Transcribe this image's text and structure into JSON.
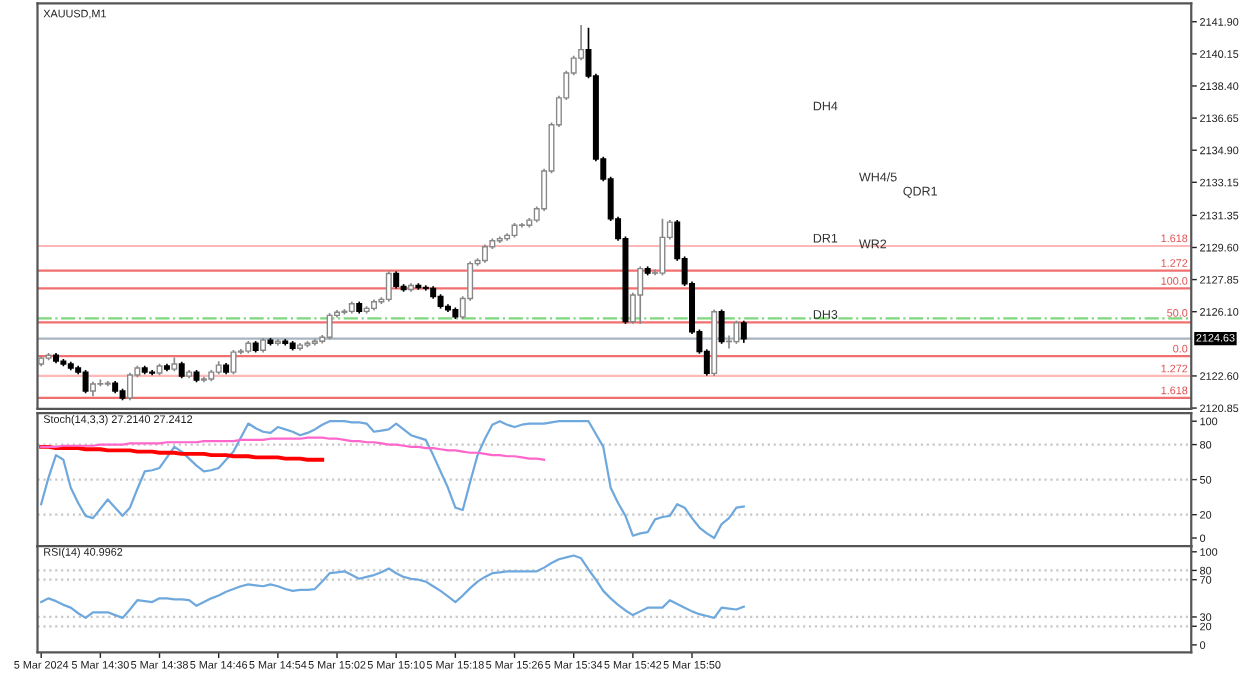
{
  "chart_data": [
    {
      "type": "candlestick",
      "title": "XAUUSD,M1",
      "categories": [
        null,
        null,
        null,
        null,
        null,
        null,
        null,
        null,
        null,
        null,
        null,
        null,
        null,
        null,
        null,
        null,
        null,
        null,
        null,
        null,
        null,
        null,
        null,
        null,
        null,
        null,
        null,
        null,
        null,
        null,
        null,
        null,
        null,
        null,
        null,
        null,
        null,
        null,
        null,
        null,
        null,
        null,
        null,
        null,
        null,
        null,
        null,
        null,
        null,
        null,
        null,
        null,
        null,
        null,
        null,
        null,
        null,
        null,
        null,
        null,
        null,
        null,
        null,
        null,
        null,
        null,
        null,
        null,
        null,
        null,
        null,
        null,
        null,
        null,
        null,
        null,
        null,
        null,
        null,
        null,
        null,
        null,
        null,
        null,
        null,
        null,
        null,
        null,
        null,
        null,
        null,
        null,
        null,
        null,
        null,
        null,
        null,
        null,
        null,
        null,
        null,
        null,
        null,
        null,
        null,
        null,
        null,
        null,
        null,
        null,
        null,
        null,
        null,
        null,
        null,
        null,
        null,
        null,
        null,
        null,
        null,
        null,
        null,
        null,
        null,
        null,
        null,
        null,
        null,
        null,
        null,
        null,
        null,
        null,
        null,
        null,
        null,
        null,
        null,
        null,
        null,
        null,
        null,
        null,
        null,
        null,
        null,
        null,
        null,
        null,
        null,
        null,
        null,
        null,
        null,
        null
      ],
      "ohlc": [
        [
          2123.25,
          2123.68,
          2123.13,
          2123.57
        ],
        [
          2123.57,
          2123.85,
          2123.45,
          2123.73
        ],
        [
          2123.73,
          2123.85,
          2123.29,
          2123.41
        ],
        [
          2123.41,
          2123.53,
          2123.13,
          2123.25
        ],
        [
          2123.25,
          2123.37,
          2122.91,
          2123.03
        ],
        [
          2123.03,
          2123.15,
          2122.69,
          2122.81
        ],
        [
          2122.81,
          2122.93,
          2121.66,
          2121.78
        ],
        [
          2121.78,
          2122.28,
          2121.5,
          2122.16
        ],
        [
          2122.16,
          2122.4,
          2122.04,
          2122.16
        ],
        [
          2122.16,
          2122.33,
          2122.04,
          2122.21
        ],
        [
          2122.21,
          2122.33,
          2121.66,
          2121.78
        ],
        [
          2121.78,
          2121.9,
          2121.28,
          2121.4
        ],
        [
          2121.4,
          2122.77,
          2121.28,
          2122.65
        ],
        [
          2122.65,
          2123.15,
          2122.53,
          2123.03
        ],
        [
          2123.03,
          2123.15,
          2122.69,
          2122.81
        ],
        [
          2122.81,
          2122.93,
          2122.64,
          2122.76
        ],
        [
          2122.76,
          2123.26,
          2122.64,
          2123.14
        ],
        [
          2123.14,
          2123.26,
          2122.85,
          2122.97
        ],
        [
          2122.97,
          2123.6,
          2122.85,
          2123.25
        ],
        [
          2123.25,
          2123.37,
          2122.47,
          2122.59
        ],
        [
          2122.59,
          2122.93,
          2122.47,
          2122.81
        ],
        [
          2122.81,
          2122.93,
          2122.26,
          2122.38
        ],
        [
          2122.38,
          2122.55,
          2122.26,
          2122.43
        ],
        [
          2122.43,
          2122.93,
          2122.31,
          2122.81
        ],
        [
          2122.81,
          2123.4,
          2122.69,
          2123.19
        ],
        [
          2123.19,
          2123.31,
          2122.69,
          2122.81
        ],
        [
          2122.81,
          2124.02,
          2122.69,
          2123.9
        ],
        [
          2123.9,
          2124.07,
          2123.78,
          2123.95
        ],
        [
          2123.95,
          2124.5,
          2123.83,
          2124.38
        ],
        [
          2124.38,
          2124.5,
          2123.88,
          2124.0
        ],
        [
          2124.0,
          2124.67,
          2123.88,
          2124.55
        ],
        [
          2124.55,
          2124.67,
          2124.26,
          2124.38
        ],
        [
          2124.38,
          2124.61,
          2124.26,
          2124.49
        ],
        [
          2124.49,
          2124.61,
          2124.26,
          2124.38
        ],
        [
          2124.38,
          2124.5,
          2123.99,
          2124.11
        ],
        [
          2124.11,
          2124.4,
          2123.99,
          2124.28
        ],
        [
          2124.28,
          2124.5,
          2124.16,
          2124.38
        ],
        [
          2124.38,
          2124.61,
          2124.26,
          2124.49
        ],
        [
          2124.49,
          2124.83,
          2124.37,
          2124.71
        ],
        [
          2124.71,
          2126.02,
          2124.59,
          2125.9
        ],
        [
          2125.9,
          2126.19,
          2125.78,
          2126.07
        ],
        [
          2126.07,
          2126.24,
          2125.95,
          2126.12
        ],
        [
          2126.12,
          2126.65,
          2126.0,
          2126.53
        ],
        [
          2126.53,
          2126.65,
          2126.0,
          2126.12
        ],
        [
          2126.12,
          2126.4,
          2126.0,
          2126.28
        ],
        [
          2126.28,
          2126.76,
          2126.16,
          2126.64
        ],
        [
          2126.64,
          2126.89,
          2126.52,
          2126.77
        ],
        [
          2126.77,
          2128.3,
          2126.65,
          2128.18
        ],
        [
          2128.18,
          2128.3,
          2127.36,
          2127.48
        ],
        [
          2127.48,
          2127.6,
          2127.19,
          2127.31
        ],
        [
          2127.31,
          2127.65,
          2127.19,
          2127.53
        ],
        [
          2127.53,
          2127.65,
          2127.3,
          2127.42
        ],
        [
          2127.42,
          2127.54,
          2127.25,
          2127.37
        ],
        [
          2127.37,
          2127.49,
          2126.81,
          2126.93
        ],
        [
          2126.93,
          2127.05,
          2126.27,
          2126.39
        ],
        [
          2126.39,
          2126.51,
          2126.09,
          2126.21
        ],
        [
          2126.21,
          2126.33,
          2125.7,
          2125.82
        ],
        [
          2125.82,
          2126.94,
          2125.7,
          2126.82
        ],
        [
          2126.82,
          2128.84,
          2126.7,
          2128.72
        ],
        [
          2128.72,
          2129.01,
          2128.6,
          2128.89
        ],
        [
          2128.89,
          2129.76,
          2128.77,
          2129.64
        ],
        [
          2129.64,
          2130.09,
          2129.52,
          2129.97
        ],
        [
          2129.97,
          2130.2,
          2129.85,
          2130.08
        ],
        [
          2130.08,
          2130.38,
          2129.96,
          2130.26
        ],
        [
          2130.26,
          2130.93,
          2130.14,
          2130.81
        ],
        [
          2130.81,
          2130.93,
          2130.69,
          2130.81
        ],
        [
          2130.81,
          2131.21,
          2130.69,
          2131.09
        ],
        [
          2131.09,
          2131.83,
          2130.97,
          2131.71
        ],
        [
          2131.71,
          2133.89,
          2131.59,
          2133.77
        ],
        [
          2133.77,
          2136.41,
          2133.65,
          2136.29
        ],
        [
          2136.29,
          2137.87,
          2136.17,
          2137.75
        ],
        [
          2137.75,
          2139.23,
          2137.63,
          2139.11
        ],
        [
          2139.11,
          2140.04,
          2138.99,
          2139.92
        ],
        [
          2139.92,
          2141.72,
          2139.8,
          2140.38
        ],
        [
          2140.38,
          2141.57,
          2138.82,
          2138.94
        ],
        [
          2138.94,
          2139.06,
          2134.3,
          2134.42
        ],
        [
          2134.42,
          2134.54,
          2133.21,
          2133.33
        ],
        [
          2133.33,
          2133.45,
          2131.04,
          2131.16
        ],
        [
          2131.16,
          2131.28,
          2129.96,
          2130.08
        ],
        [
          2130.08,
          2130.2,
          2125.44,
          2125.56
        ],
        [
          2125.56,
          2127.13,
          2125.44,
          2127.01
        ],
        [
          2127.01,
          2128.57,
          2125.44,
          2128.45
        ],
        [
          2128.45,
          2128.57,
          2128.08,
          2128.2
        ],
        [
          2128.2,
          2128.4,
          2128.08,
          2128.2
        ],
        [
          2128.2,
          2131.16,
          2128.08,
          2130.15
        ],
        [
          2130.15,
          2131.1,
          2130.03,
          2130.98
        ],
        [
          2130.98,
          2131.1,
          2128.87,
          2128.99
        ],
        [
          2128.99,
          2129.11,
          2127.5,
          2127.62
        ],
        [
          2127.62,
          2127.74,
          2124.89,
          2125.01
        ],
        [
          2125.01,
          2125.13,
          2123.81,
          2123.93
        ],
        [
          2123.93,
          2124.05,
          2122.62,
          2122.74
        ],
        [
          2122.74,
          2126.22,
          2122.59,
          2126.1
        ],
        [
          2126.1,
          2126.22,
          2124.35,
          2124.47
        ],
        [
          2124.47,
          2124.8,
          2124.1,
          2124.47
        ],
        [
          2124.47,
          2125.61,
          2124.35,
          2125.49
        ],
        [
          2125.49,
          2125.61,
          2124.4,
          2124.63
        ],
        null,
        null,
        null,
        null,
        null,
        null,
        null,
        null,
        null,
        null,
        null,
        null,
        null,
        null,
        null,
        null,
        null,
        null,
        null,
        null,
        null,
        null,
        null,
        null,
        null,
        null,
        null,
        null,
        null,
        null,
        null,
        null,
        null,
        null,
        null,
        null,
        null,
        null,
        null,
        null,
        null,
        null,
        null,
        null,
        null,
        null,
        null,
        null,
        null,
        null,
        null,
        null,
        null,
        null,
        null,
        null,
        null,
        null,
        null,
        null
      ],
      "ylim": [
        2120.8,
        2142.9
      ],
      "yticks": [
        {
          "value": 2120.85,
          "label": "2120.85"
        },
        {
          "value": 2122.6,
          "label": "2122.60"
        },
        {
          "value": 2126.1,
          "label": "2126.10"
        },
        {
          "value": 2127.85,
          "label": "2127.85"
        },
        {
          "value": 2129.6,
          "label": "2129.60"
        },
        {
          "value": 2131.35,
          "label": "2131.35"
        },
        {
          "value": 2133.15,
          "label": "2133.15"
        },
        {
          "value": 2134.9,
          "label": "2134.90"
        },
        {
          "value": 2136.65,
          "label": "2136.65"
        },
        {
          "value": 2138.4,
          "label": "2138.40"
        },
        {
          "value": 2140.15,
          "label": "2140.15"
        },
        {
          "value": 2141.9,
          "label": "2141.90"
        }
      ],
      "ref_lines": [
        {
          "axis": "y",
          "value": 2129.68,
          "color": "#ffb8b8",
          "line_style": "solid"
        },
        {
          "axis": "y",
          "value": 2128.34,
          "color": "#f07070",
          "line_style": "solid"
        },
        {
          "axis": "y",
          "value": 2127.37,
          "color": "#f07070",
          "line_style": "solid"
        },
        {
          "axis": "y",
          "value": 2125.74,
          "color": "#7fd87f",
          "line_style": "dashdot"
        },
        {
          "axis": "y",
          "value": 2125.52,
          "color": "#f07070",
          "line_style": "solid"
        },
        {
          "axis": "y",
          "value": 2124.63,
          "label": "2124.63",
          "color": "#a8b4c0",
          "line_style": "solid"
        },
        {
          "axis": "y",
          "value": 2123.68,
          "color": "#f07070",
          "line_style": "solid"
        },
        {
          "axis": "y",
          "value": 2122.6,
          "color": "#ffb8b8",
          "line_style": "solid"
        },
        {
          "axis": "y",
          "value": 2121.4,
          "color": "#f07070",
          "line_style": "solid"
        }
      ],
      "annotations": [
        "DH4",
        "WH4/5",
        "QDR1",
        "DR1",
        "WR2",
        "DH3",
        "1.618",
        "1.272",
        "100.0",
        "50.0",
        "0.0",
        "1.272",
        "1.618"
      ],
      "tick_labels": "y"
    },
    {
      "type": "line",
      "title": "Stoch(14,3,3) 27.2140 27.2412",
      "categories": [
        null,
        null,
        null,
        null,
        null,
        null,
        null,
        null,
        null,
        null,
        null,
        null,
        null,
        null,
        null,
        null,
        null,
        null,
        null,
        null,
        null,
        null,
        null,
        null,
        null,
        null,
        null,
        null,
        null,
        null,
        null,
        null,
        null,
        null,
        null,
        null,
        null,
        null,
        null,
        null,
        null,
        null,
        null,
        null,
        null,
        null,
        null,
        null,
        null,
        null,
        null,
        null,
        null,
        null,
        null,
        null,
        null,
        null,
        null,
        null,
        null,
        null,
        null,
        null,
        null,
        null,
        null,
        null,
        null,
        null,
        null,
        null,
        null,
        null,
        null,
        null,
        null,
        null,
        null,
        null,
        null,
        null,
        null,
        null,
        null,
        null,
        null,
        null,
        null,
        null,
        null,
        null,
        null,
        null,
        null,
        null,
        null,
        null,
        null,
        null,
        null,
        null,
        null,
        null,
        null,
        null,
        null,
        null,
        null,
        null,
        null,
        null,
        null,
        null,
        null,
        null,
        null,
        null,
        null,
        null,
        null,
        null,
        null,
        null,
        null,
        null,
        null,
        null,
        null,
        null,
        null,
        null,
        null,
        null,
        null,
        null,
        null,
        null,
        null,
        null,
        null,
        null,
        null,
        null,
        null,
        null,
        null,
        null,
        null,
        null,
        null,
        null,
        null,
        null,
        null,
        null
      ],
      "series": [
        {
          "color": "#6fa8dc",
          "values": [
            29,
            52,
            71,
            67,
            43,
            30,
            19,
            17,
            25,
            33,
            26,
            19,
            26,
            42,
            57,
            58,
            60,
            69,
            78,
            74,
            68,
            62,
            57,
            58,
            60,
            67,
            74,
            86,
            98,
            94,
            91,
            90,
            95,
            93,
            91,
            88,
            90,
            93,
            97,
            100,
            100,
            100,
            99,
            99,
            98,
            91,
            92,
            93,
            98,
            93,
            88,
            86,
            84,
            71,
            57,
            43,
            26,
            24,
            48,
            71,
            85,
            97,
            100,
            97,
            95,
            97,
            98,
            98,
            98,
            99,
            100,
            100,
            100,
            100,
            100,
            89,
            78,
            43,
            30,
            19,
            2,
            4,
            5,
            16,
            18,
            19,
            29,
            26,
            17,
            9,
            4,
            0,
            12,
            17,
            26,
            27,
            null,
            null,
            null,
            null,
            null,
            null,
            null,
            null,
            null,
            null,
            null,
            null,
            null,
            null,
            null,
            null,
            null,
            null,
            null,
            null,
            null,
            null,
            null,
            null,
            null,
            null,
            null,
            null,
            null,
            null,
            null,
            null,
            null,
            null,
            null,
            null,
            null,
            null,
            null,
            null,
            null,
            null,
            null,
            null,
            null,
            null,
            null,
            null,
            null,
            null,
            null,
            null,
            null,
            null,
            null,
            null,
            null,
            null,
            null,
            null
          ]
        },
        {
          "color": "#ff0000",
          "values": [
            78,
            78,
            77,
            77,
            77,
            77,
            76,
            76,
            76,
            75,
            75,
            75,
            75,
            74,
            74,
            74,
            73,
            73,
            73,
            72,
            72,
            72,
            72,
            71,
            71,
            71,
            70,
            70,
            70,
            69,
            69,
            69,
            69,
            68,
            68,
            68,
            67,
            67,
            67,
            null,
            null,
            null,
            null,
            null,
            null,
            null,
            null,
            null,
            null,
            null,
            null,
            null,
            null,
            null,
            null,
            null,
            null,
            null,
            null,
            null,
            null,
            null,
            null,
            null,
            null,
            null,
            null,
            null,
            null,
            null,
            null,
            null,
            null,
            null,
            null,
            null,
            null,
            null,
            null,
            null,
            null,
            null,
            null,
            null,
            null,
            null,
            null,
            null,
            null,
            null,
            null,
            null,
            null,
            null,
            null,
            null,
            null,
            null,
            null,
            null,
            null,
            null,
            null,
            null,
            null,
            null,
            null,
            null,
            null,
            null,
            null,
            null,
            null,
            null,
            null,
            null,
            null,
            null,
            null,
            null,
            null,
            null,
            null,
            null,
            null,
            null,
            null,
            null,
            null,
            null,
            null,
            null,
            null,
            null,
            null,
            null,
            null,
            null,
            null,
            null,
            null,
            null,
            null,
            null,
            null,
            null,
            null,
            null,
            null,
            null,
            null,
            null,
            null,
            null,
            null,
            null
          ]
        },
        {
          "color": "#ff66cc",
          "values": [
            78,
            78,
            78,
            79,
            79,
            79,
            79,
            79,
            80,
            80,
            80,
            80,
            81,
            81,
            81,
            81,
            81,
            82,
            82,
            82,
            82,
            82,
            83,
            83,
            83,
            83,
            83,
            84,
            84,
            84,
            84,
            85,
            85,
            85,
            85,
            85,
            86,
            86,
            86,
            85,
            85,
            84,
            83,
            83,
            82,
            82,
            81,
            80,
            80,
            79,
            78,
            78,
            77,
            77,
            76,
            75,
            75,
            74,
            73,
            73,
            72,
            71,
            71,
            70,
            70,
            69,
            68,
            68,
            67,
            null,
            null,
            null,
            null,
            null,
            null,
            null,
            null,
            null,
            null,
            null,
            null,
            null,
            null,
            null,
            null,
            null,
            null,
            null,
            null,
            null,
            null,
            null,
            null,
            null,
            null,
            null,
            null,
            null,
            null,
            null,
            null,
            null,
            null,
            null,
            null,
            null,
            null,
            null,
            null,
            null,
            null,
            null,
            null,
            null,
            null,
            null,
            null,
            null,
            null,
            null,
            null,
            null,
            null,
            null,
            null,
            null,
            null,
            null,
            null,
            null,
            null,
            null,
            null,
            null,
            null,
            null,
            null,
            null,
            null,
            null,
            null,
            null,
            null,
            null,
            null,
            null,
            null,
            null,
            null,
            null,
            null,
            null,
            null,
            null,
            null,
            null
          ]
        }
      ],
      "ylim": [
        -7,
        107
      ],
      "yticks": [
        0,
        20,
        50,
        80,
        100
      ],
      "ref_lines": [
        {
          "axis": "y",
          "value": 80,
          "color": "#c8c8c8",
          "line_style": "dotted"
        },
        {
          "axis": "y",
          "value": 50,
          "color": "#c8c8c8",
          "line_style": "dotted"
        },
        {
          "axis": "y",
          "value": 20,
          "color": "#c8c8c8",
          "line_style": "dotted"
        }
      ],
      "tick_labels": "y"
    },
    {
      "type": "line",
      "title": "RSI(14) 40.9962",
      "categories": [
        "5 Mar 2024",
        null,
        null,
        null,
        null,
        null,
        null,
        null,
        "5 Mar 14:30",
        null,
        null,
        null,
        null,
        null,
        null,
        null,
        "5 Mar 14:38",
        null,
        null,
        null,
        null,
        null,
        null,
        null,
        "5 Mar 14:46",
        null,
        null,
        null,
        null,
        null,
        null,
        null,
        "5 Mar 14:54",
        null,
        null,
        null,
        null,
        null,
        null,
        null,
        "5 Mar 15:02",
        null,
        null,
        null,
        null,
        null,
        null,
        null,
        "5 Mar 15:10",
        null,
        null,
        null,
        null,
        null,
        null,
        null,
        "5 Mar 15:18",
        null,
        null,
        null,
        null,
        null,
        null,
        null,
        "5 Mar 15:26",
        null,
        null,
        null,
        null,
        null,
        null,
        null,
        "5 Mar 15:34",
        null,
        null,
        null,
        null,
        null,
        null,
        null,
        "5 Mar 15:42",
        null,
        null,
        null,
        null,
        null,
        null,
        null,
        "5 Mar 15:50",
        null,
        null,
        null,
        null,
        null,
        null,
        null,
        null,
        null,
        null,
        null,
        null,
        null,
        null,
        null,
        null,
        null,
        null,
        null,
        null,
        null,
        null,
        null,
        null,
        null,
        null,
        null,
        null,
        null,
        null,
        null,
        null,
        null,
        null,
        null,
        null,
        null,
        null,
        null,
        null,
        null,
        null,
        null,
        null,
        null,
        null,
        null,
        null,
        null,
        null,
        null,
        null,
        null,
        null,
        null,
        null,
        null,
        null,
        null,
        null,
        null,
        null,
        null,
        null,
        null,
        null,
        null
      ],
      "series": [
        {
          "color": "#6fa8dc",
          "values": [
            46,
            50,
            47,
            43,
            40,
            34,
            29,
            35,
            35,
            35,
            32,
            29,
            38,
            48,
            47,
            46,
            50,
            50,
            49,
            49,
            48,
            42,
            46,
            50,
            53,
            57,
            60,
            63,
            65,
            64,
            63,
            65,
            63,
            60,
            58,
            59,
            59,
            60,
            68,
            77,
            78,
            79,
            75,
            71,
            73,
            75,
            78,
            82,
            77,
            73,
            71,
            70,
            68,
            63,
            58,
            52,
            46,
            53,
            61,
            68,
            73,
            77,
            78,
            79,
            79,
            79,
            79,
            79,
            83,
            88,
            92,
            94,
            96,
            93,
            81,
            70,
            58,
            50,
            43,
            37,
            32,
            36,
            40,
            40,
            40,
            48,
            44,
            40,
            36,
            33,
            31,
            29,
            40,
            39,
            38,
            41,
            null,
            null,
            null,
            null,
            null,
            null,
            null,
            null,
            null,
            null,
            null,
            null,
            null,
            null,
            null,
            null,
            null,
            null,
            null,
            null,
            null,
            null,
            null,
            null,
            null,
            null,
            null,
            null,
            null,
            null,
            null,
            null,
            null,
            null,
            null,
            null,
            null,
            null,
            null,
            null,
            null,
            null,
            null,
            null,
            null,
            null,
            null,
            null,
            null,
            null,
            null,
            null,
            null,
            null,
            null,
            null,
            null,
            null,
            null,
            null
          ]
        }
      ],
      "ylim": [
        -8,
        106
      ],
      "yticks": [
        0,
        20,
        30,
        70,
        80,
        100
      ],
      "ref_lines": [
        {
          "axis": "y",
          "value": 80,
          "color": "#c8c8c8",
          "line_style": "dotted"
        },
        {
          "axis": "y",
          "value": 70,
          "color": "#c8c8c8",
          "line_style": "dotted"
        },
        {
          "axis": "y",
          "value": 30,
          "color": "#c8c8c8",
          "line_style": "dotted"
        },
        {
          "axis": "y",
          "value": 20,
          "color": "#c8c8c8",
          "line_style": "dotted"
        }
      ]
    }
  ]
}
